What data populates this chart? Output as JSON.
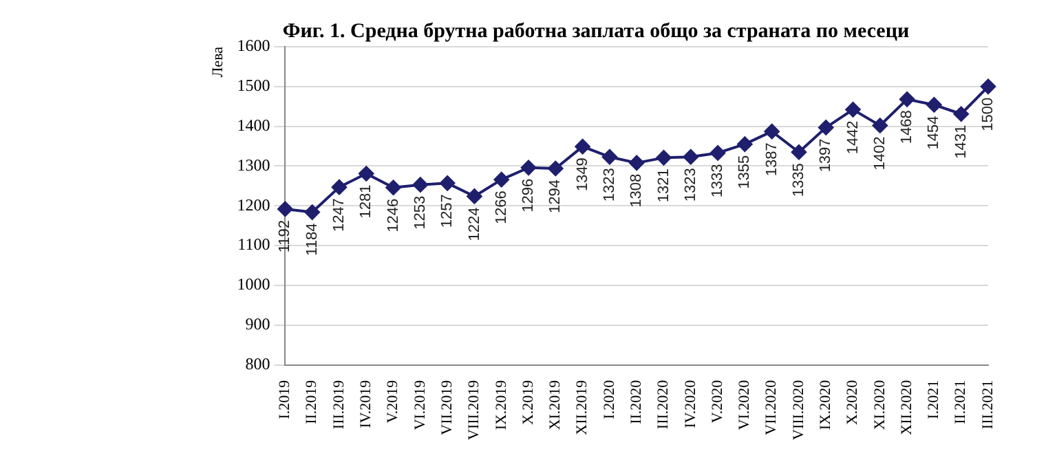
{
  "chart_data": {
    "type": "line",
    "title": "Фиг. 1. Средна брутна работна заплата общо за страната по месеци",
    "ylabel": "Лева",
    "categories": [
      "I.2019",
      "II.2019",
      "III.2019",
      "IV.2019",
      "V.2019",
      "VI.2019",
      "VII.2019",
      "VIII.2019",
      "IX.2019",
      "X.2019",
      "XI.2019",
      "XII.2019",
      "I.2020",
      "II.2020",
      "III.2020",
      "IV.2020",
      "V.2020",
      "VI.2020",
      "VII.2020",
      "VIII.2020",
      "IX.2020",
      "X.2020",
      "XI.2020",
      "XII.2020",
      "I.2021",
      "II.2021",
      "III.2021"
    ],
    "series": [
      {
        "color": "#1f1f6e",
        "values": [
          1192,
          1184,
          1247,
          1281,
          1246,
          1253,
          1257,
          1224,
          1266,
          1296,
          1294,
          1349,
          1323,
          1308,
          1321,
          1323,
          1333,
          1355,
          1387,
          1335,
          1397,
          1442,
          1402,
          1468,
          1454,
          1431,
          1500
        ]
      }
    ],
    "ylim": [
      800,
      1600
    ],
    "yticks": [
      800,
      900,
      1000,
      1100,
      1200,
      1300,
      1400,
      1500,
      1600
    ],
    "grid": "y",
    "marker": "diamond",
    "line_style": "solid",
    "data_labels": true,
    "legend": false
  }
}
